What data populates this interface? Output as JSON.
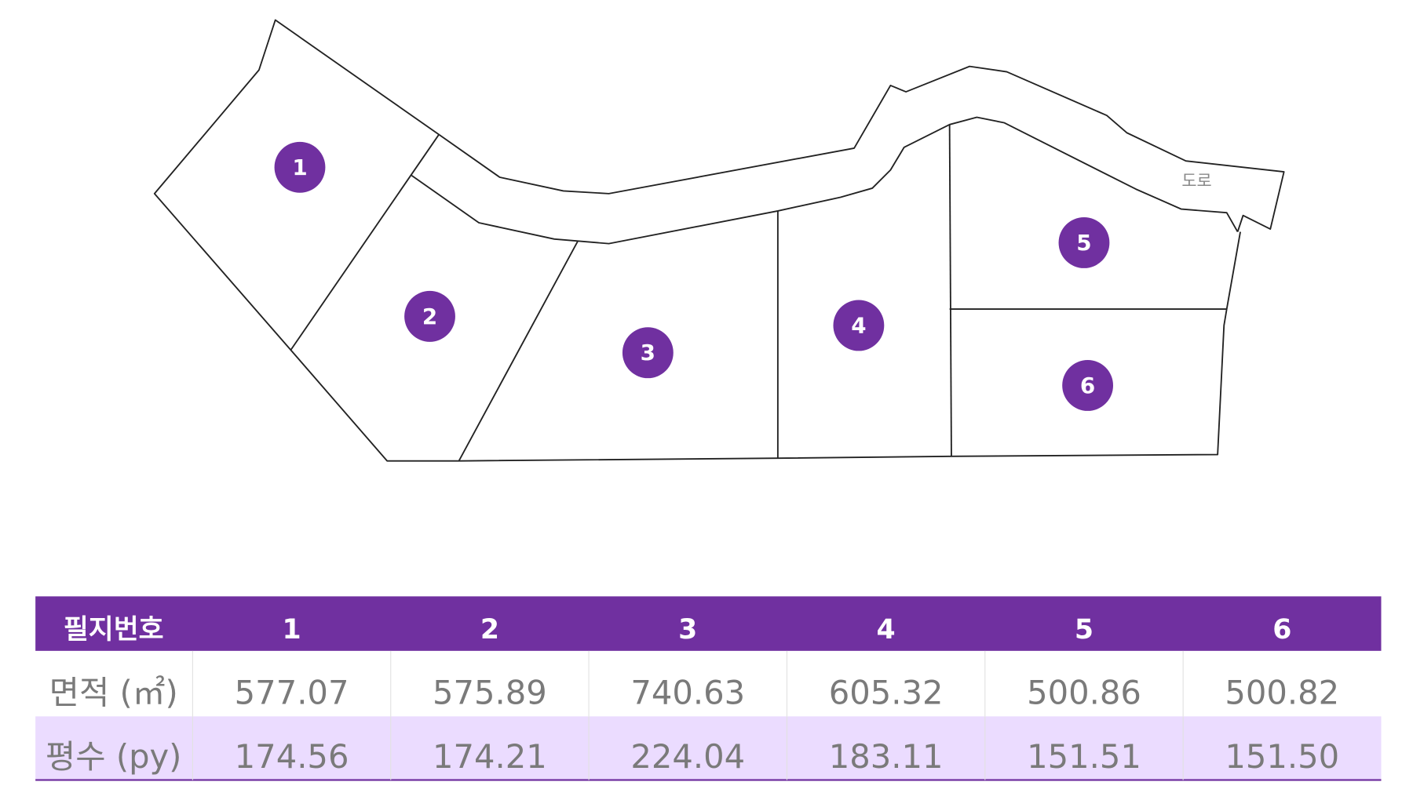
{
  "map": {
    "road_label": "도로",
    "lots": [
      {
        "label": "1"
      },
      {
        "label": "2"
      },
      {
        "label": "3"
      },
      {
        "label": "4"
      },
      {
        "label": "5"
      },
      {
        "label": "6"
      }
    ]
  },
  "table": {
    "header": [
      "필지번호",
      "1",
      "2",
      "3",
      "4",
      "5",
      "6"
    ],
    "rows": [
      [
        "면적 (㎡)",
        "577.07",
        "575.89",
        "740.63",
        "605.32",
        "500.86",
        "500.82"
      ],
      [
        "평수 (py)",
        "174.56",
        "174.21",
        "224.04",
        "183.11",
        "151.51",
        "151.50"
      ]
    ]
  }
}
